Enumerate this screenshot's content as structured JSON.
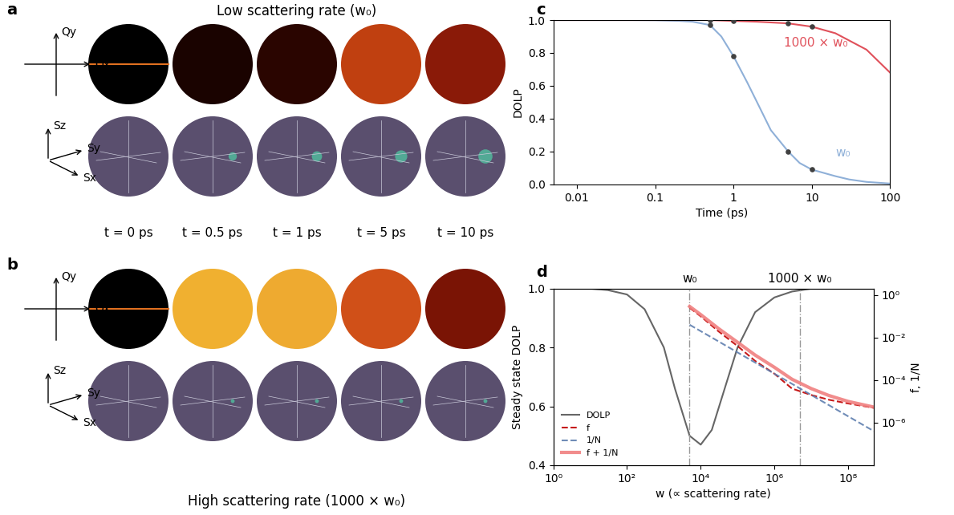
{
  "image_panels": {
    "a": {
      "panel_label": "a",
      "title": "Low scattering rate (w₀)"
    },
    "b": {
      "panel_label": "b",
      "title": "High scattering rate (1000 × w₀)"
    },
    "times": [
      "t = 0 ps",
      "t = 0.5 ps",
      "t = 1 ps",
      "t = 5 ps",
      "t = 10 ps"
    ],
    "momentum_axes": [
      "Qx",
      "Qy"
    ],
    "stokes_axes": [
      "Sx",
      "Sy",
      "Sz"
    ]
  },
  "chart_data": [
    {
      "type": "line",
      "panel_label": "c",
      "x_label": "Time (ps)",
      "y_label": "DOLP",
      "log": "x",
      "xlim": [
        0.005,
        100
      ],
      "ylim": [
        0,
        1
      ],
      "xticks": [
        0.01,
        0.1,
        1,
        10,
        100
      ],
      "yticks": [
        {
          "value": 0.0,
          "label": "0.0"
        },
        {
          "value": 0.2,
          "label": "0.2"
        },
        {
          "value": 0.4,
          "label": "0.4"
        },
        {
          "value": 0.6,
          "label": "0.6"
        },
        {
          "value": 0.8,
          "label": "0.8"
        },
        {
          "value": 1.0,
          "label": "1.0"
        }
      ],
      "series": [
        {
          "name": "w₀",
          "color": "#8fb0d8",
          "line_style": "solid",
          "x": [
            0.005,
            0.01,
            0.05,
            0.1,
            0.2,
            0.3,
            0.5,
            0.7,
            1,
            1.5,
            2,
            3,
            5,
            7,
            10,
            20,
            30,
            50,
            100
          ],
          "values": [
            1,
            1,
            1,
            0.999,
            0.995,
            0.99,
            0.97,
            0.9,
            0.78,
            0.62,
            0.5,
            0.33,
            0.2,
            0.13,
            0.09,
            0.05,
            0.03,
            0.015,
            0.005
          ]
        },
        {
          "name": "1000 × w₀",
          "color": "#e0505a",
          "line_style": "solid",
          "x": [
            0.005,
            0.1,
            0.5,
            1,
            2,
            5,
            10,
            20,
            50,
            100
          ],
          "values": [
            1,
            1,
            1,
            0.995,
            0.99,
            0.98,
            0.96,
            0.92,
            0.82,
            0.68
          ]
        },
        {
          "type": "scatter",
          "color": "#404040",
          "marker": "o",
          "x": [
            0.5,
            1,
            5,
            10
          ],
          "values": [
            0.97,
            0.78,
            0.2,
            0.09
          ]
        },
        {
          "type": "scatter",
          "color": "#404040",
          "marker": "o",
          "x": [
            0.5,
            1,
            5,
            10
          ],
          "values": [
            1,
            0.995,
            0.98,
            0.96
          ]
        }
      ]
    },
    {
      "type": "line",
      "panel_label": "d",
      "x_label": "w (∝ scattering rate)",
      "y_label": "Steady state DOLP",
      "y2_label": "f, 1/N",
      "log": "x",
      "xlim": [
        1,
        500000000.0
      ],
      "ylim": [
        0.4,
        1.0
      ],
      "y2lim": [
        1e-08,
        2
      ],
      "xticks": [
        {
          "value": 1,
          "label": "10⁰"
        },
        {
          "value": 100,
          "label": "10²"
        },
        {
          "value": 10000,
          "label": "10⁴"
        },
        {
          "value": 1000000,
          "label": "10⁶"
        },
        {
          "value": 100000000,
          "label": "10⁸"
        }
      ],
      "yticks": [
        {
          "value": 0.4,
          "label": "0.4"
        },
        {
          "value": 0.6,
          "label": "0.6"
        },
        {
          "value": 0.8,
          "label": "0.8"
        },
        {
          "value": 1.0,
          "label": "1.0"
        }
      ],
      "y2ticks": [
        {
          "value": 1,
          "label": "10⁰"
        },
        {
          "value": 0.01,
          "label": "10⁻²"
        },
        {
          "value": 0.0001,
          "label": "10⁻⁴"
        },
        {
          "value": 1e-06,
          "label": "10⁻⁶"
        }
      ],
      "legend": "lower left",
      "annotations": [
        {
          "text": "w₀",
          "x": 5000
        },
        {
          "text": "1000 × w₀",
          "x": 5000000
        }
      ],
      "series": [
        {
          "name": "DOLP",
          "color": "#555555",
          "line_style": "solid",
          "x": [
            1,
            3,
            10,
            30,
            100,
            300,
            1000,
            2000,
            5000,
            10000,
            20000,
            50000,
            100000,
            300000,
            1000000,
            3000000,
            10000000,
            100000000,
            500000000
          ],
          "values": [
            1,
            1,
            1,
            0.995,
            0.98,
            0.93,
            0.8,
            0.66,
            0.5,
            0.47,
            0.52,
            0.68,
            0.8,
            0.92,
            0.97,
            0.99,
            1,
            1,
            1
          ]
        },
        {
          "name": "f",
          "color": "#c00000",
          "line_style": "dashed",
          "axis": "y2",
          "x": [
            5000,
            10000,
            30000,
            100000,
            300000,
            1000000,
            3000000,
            10000000,
            30000000,
            100000000,
            500000000
          ],
          "values": [
            0.25,
            0.1,
            0.02,
            0.004,
            0.0008,
            0.0002,
            4e-05,
            2e-05,
            1.2e-05,
            8e-06,
            5e-06
          ]
        },
        {
          "name": "1/N",
          "color": "#6080b0",
          "line_style": "dashed",
          "axis": "y2",
          "x": [
            5000,
            10000,
            30000,
            100000,
            300000,
            1000000,
            3000000,
            10000000,
            30000000,
            100000000,
            500000000
          ],
          "values": [
            0.04,
            0.02,
            0.0067,
            0.002,
            0.00067,
            0.0002,
            6.7e-05,
            2e-05,
            6.7e-06,
            2e-06,
            4e-07
          ]
        },
        {
          "name": "f + 1/N",
          "color": "#f08080",
          "line_style": "solid",
          "axis": "y2",
          "x": [
            5000,
            10000,
            30000,
            100000,
            300000,
            1000000,
            3000000,
            10000000,
            30000000,
            100000000,
            500000000
          ],
          "values": [
            0.29,
            0.12,
            0.027,
            0.006,
            0.0015,
            0.0004,
            0.00011,
            4e-05,
            1.9e-05,
            1e-05,
            5.4e-06
          ]
        }
      ]
    }
  ]
}
